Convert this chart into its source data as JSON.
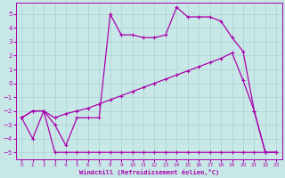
{
  "xlabel": "Windchill (Refroidissement éolien,°C)",
  "xlim": [
    -0.5,
    23.5
  ],
  "ylim": [
    -5.5,
    5.8
  ],
  "xticks": [
    0,
    1,
    2,
    3,
    4,
    5,
    6,
    7,
    8,
    9,
    10,
    11,
    12,
    13,
    14,
    15,
    16,
    17,
    18,
    19,
    20,
    21,
    22,
    23
  ],
  "yticks": [
    -5,
    -4,
    -3,
    -2,
    -1,
    0,
    1,
    2,
    3,
    4,
    5
  ],
  "bg_color": "#c8e8e8",
  "line_color": "#aa00aa",
  "grid_color": "#aad0d0",
  "curve1_x": [
    0,
    1,
    2,
    3,
    4,
    5,
    6,
    7,
    8,
    9,
    10,
    11,
    12,
    13,
    14,
    15,
    16,
    17,
    18,
    19,
    20,
    21,
    22,
    23
  ],
  "curve1_y": [
    -2.5,
    -4.0,
    -2.0,
    -5.0,
    -5.0,
    -5.0,
    -5.0,
    -5.0,
    -5.0,
    -5.0,
    -5.0,
    -5.0,
    -5.0,
    -5.0,
    -5.0,
    -5.0,
    -5.0,
    -5.0,
    -5.0,
    -5.0,
    -5.0,
    -5.0,
    -5.0,
    -5.0
  ],
  "curve2_x": [
    0,
    1,
    2,
    3,
    4,
    5,
    6,
    7,
    8,
    9,
    10,
    11,
    12,
    13,
    14,
    15,
    16,
    17,
    18,
    19,
    20,
    21,
    22,
    23
  ],
  "curve2_y": [
    -2.5,
    -2.0,
    -2.0,
    -2.5,
    -2.2,
    -2.0,
    -1.8,
    -1.5,
    -1.2,
    -0.9,
    -0.6,
    -0.3,
    0.0,
    0.3,
    0.6,
    0.9,
    1.2,
    1.5,
    1.8,
    2.2,
    0.2,
    -2.0,
    -5.0,
    -5.0
  ],
  "curve3_x": [
    0,
    1,
    2,
    3,
    4,
    5,
    6,
    7,
    8,
    9,
    10,
    11,
    12,
    13,
    14,
    15,
    16,
    17,
    18,
    19,
    20,
    21,
    22,
    23
  ],
  "curve3_y": [
    -2.5,
    -2.0,
    -2.0,
    -3.0,
    -4.5,
    -2.5,
    -2.5,
    -2.5,
    5.0,
    3.5,
    3.5,
    3.3,
    3.3,
    3.5,
    5.5,
    4.8,
    4.8,
    4.8,
    4.5,
    3.3,
    2.3,
    -2.0,
    -5.0,
    -5.0
  ],
  "linewidth": 0.9,
  "markersize": 3.5
}
